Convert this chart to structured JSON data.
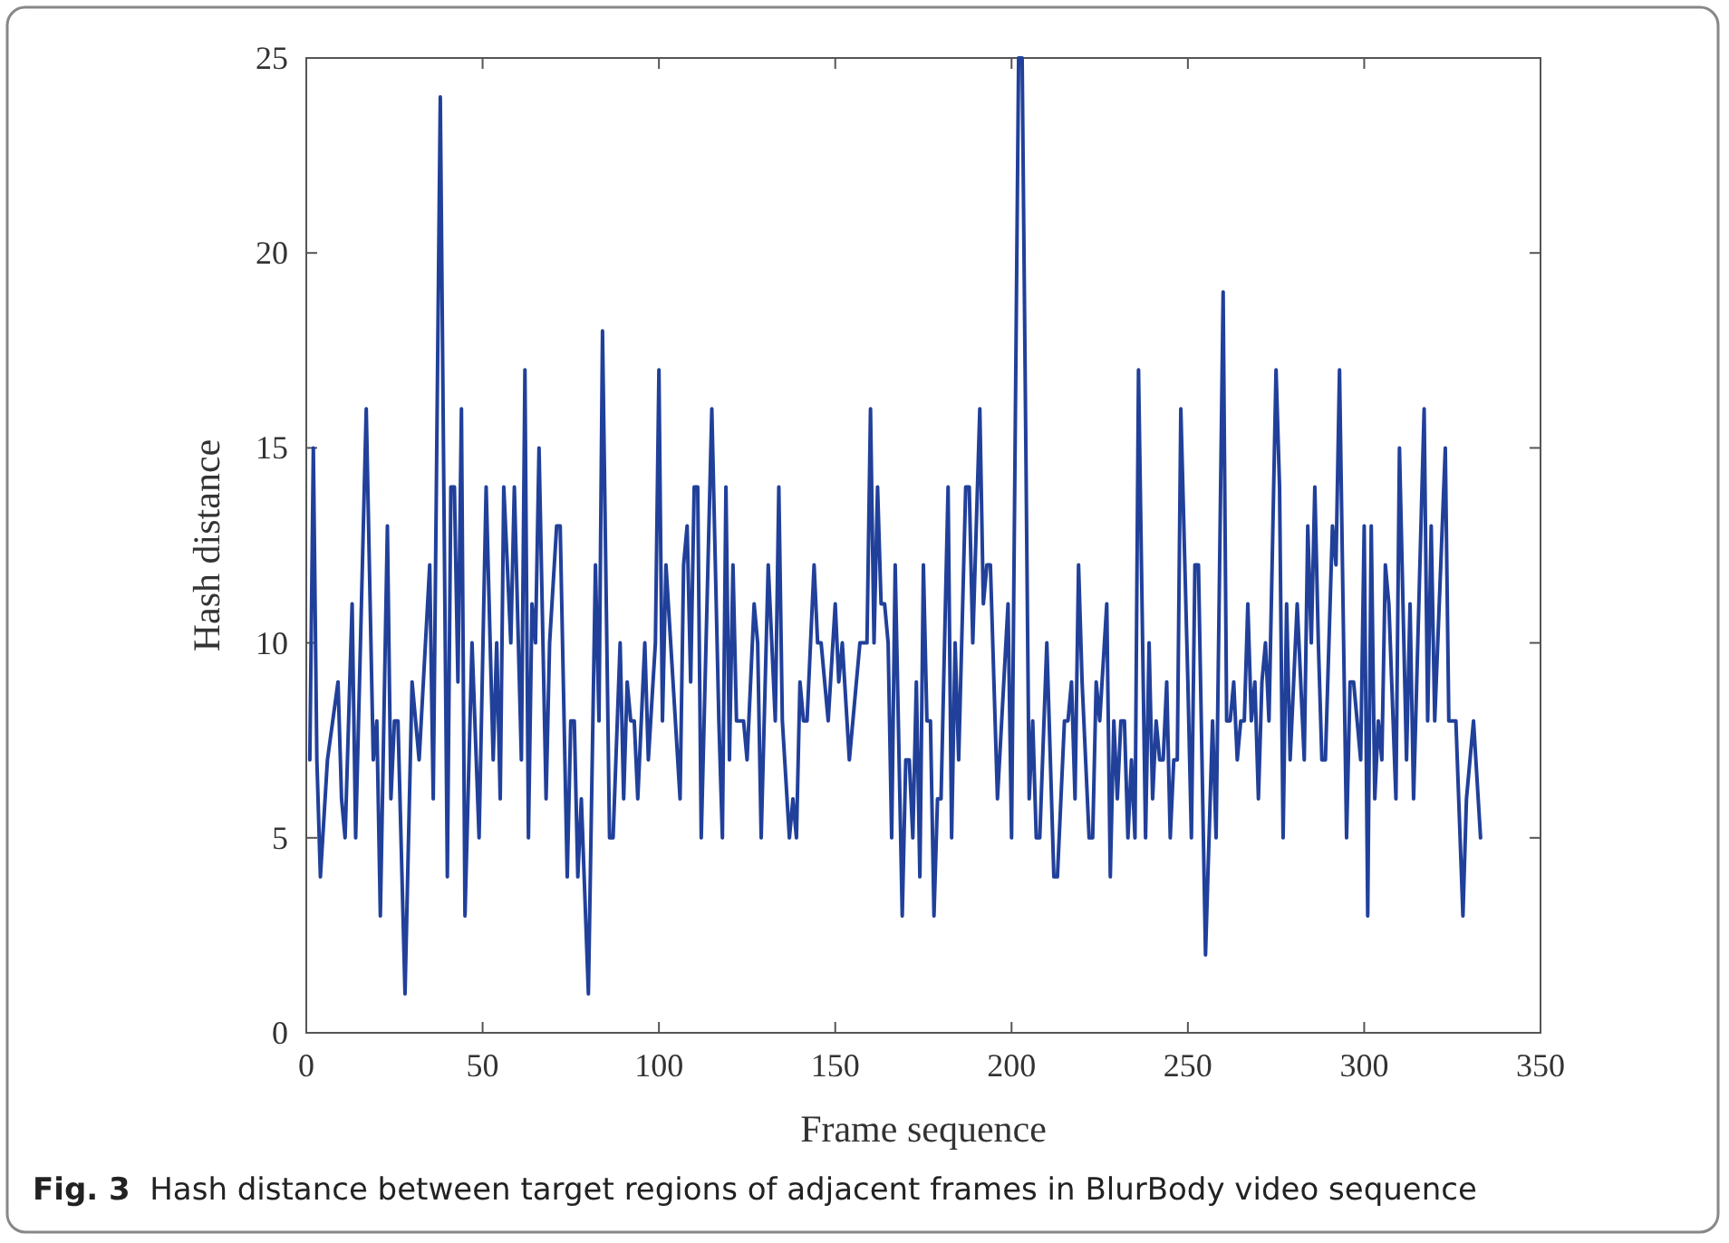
{
  "chart_data": {
    "type": "line",
    "xlabel": "Frame sequence",
    "ylabel": "Hash distance",
    "annotations": [
      "Fig. 3  Hash distance between target regions of adjacent frames in BlurBody video sequence"
    ],
    "xlim": [
      0,
      350
    ],
    "xticks": [
      0,
      50,
      100,
      150,
      200,
      250,
      300,
      350
    ],
    "ylim": [
      0,
      25
    ],
    "yticks": [
      0,
      5,
      10,
      15,
      20,
      25
    ],
    "grid": false,
    "marker": "none",
    "line_style": "solid",
    "series": [
      {
        "color": "#21409a",
        "x": [
          1,
          2,
          3,
          4,
          6,
          9,
          10,
          11,
          13,
          14,
          17,
          19,
          20,
          21,
          23,
          24,
          25,
          26,
          28,
          30,
          32,
          35,
          36,
          38,
          40,
          41,
          42,
          43,
          44,
          45,
          47,
          49,
          51,
          53,
          54,
          55,
          56,
          58,
          59,
          61,
          62,
          63,
          64,
          65,
          66,
          68,
          69,
          71,
          72,
          74,
          75,
          76,
          77,
          78,
          80,
          82,
          83,
          84,
          86,
          87,
          89,
          90,
          91,
          92,
          93,
          94,
          96,
          97,
          99,
          100,
          101,
          102,
          106,
          107,
          108,
          109,
          110,
          111,
          112,
          115,
          117,
          118,
          119,
          120,
          121,
          122,
          124,
          125,
          127,
          128,
          129,
          131,
          133,
          134,
          135,
          137,
          138,
          139,
          140,
          141,
          142,
          144,
          145,
          146,
          148,
          150,
          151,
          152,
          154,
          157,
          159,
          160,
          161,
          162,
          163,
          164,
          165,
          166,
          167,
          169,
          170,
          171,
          172,
          173,
          174,
          175,
          176,
          177,
          178,
          179,
          180,
          182,
          183,
          184,
          185,
          187,
          188,
          189,
          191,
          192,
          193,
          194,
          196,
          199,
          200,
          202,
          203,
          205,
          206,
          207,
          208,
          210,
          212,
          213,
          215,
          216,
          217,
          218,
          219,
          220,
          222,
          223,
          224,
          225,
          227,
          228,
          229,
          230,
          231,
          232,
          233,
          234,
          235,
          236,
          238,
          239,
          240,
          241,
          242,
          243,
          244,
          245,
          246,
          247,
          248,
          250,
          251,
          252,
          253,
          255,
          257,
          258,
          260,
          261,
          262,
          263,
          264,
          265,
          266,
          267,
          268,
          269,
          270,
          271,
          272,
          273,
          275,
          276,
          277,
          278,
          279,
          281,
          283,
          284,
          285,
          286,
          287,
          288,
          289,
          291,
          292,
          293,
          295,
          296,
          297,
          299,
          300,
          301,
          302,
          303,
          304,
          305,
          306,
          307,
          309,
          310,
          312,
          313,
          314,
          317,
          318,
          319,
          320,
          323,
          324,
          326,
          328,
          329,
          331,
          333
        ],
        "values": [
          7,
          15,
          7,
          4,
          7,
          9,
          6,
          5,
          11,
          5,
          16,
          7,
          8,
          3,
          13,
          6,
          8,
          8,
          1,
          9,
          7,
          12,
          6,
          24,
          4,
          14,
          14,
          9,
          16,
          3,
          10,
          5,
          14,
          7,
          10,
          6,
          14,
          10,
          14,
          7,
          17,
          5,
          11,
          10,
          15,
          6,
          10,
          13,
          13,
          4,
          8,
          8,
          4,
          6,
          1,
          12,
          8,
          18,
          5,
          5,
          10,
          6,
          9,
          8,
          8,
          6,
          10,
          7,
          10,
          17,
          8,
          12,
          6,
          12,
          13,
          9,
          14,
          14,
          5,
          16,
          8,
          5,
          14,
          7,
          12,
          8,
          8,
          7,
          11,
          10,
          5,
          12,
          8,
          14,
          8,
          5,
          6,
          5,
          9,
          8,
          8,
          12,
          10,
          10,
          8,
          11,
          9,
          10,
          7,
          10,
          10,
          16,
          10,
          14,
          11,
          11,
          10,
          5,
          12,
          3,
          7,
          7,
          5,
          9,
          4,
          12,
          8,
          8,
          3,
          6,
          6,
          14,
          5,
          10,
          7,
          14,
          14,
          10,
          16,
          11,
          12,
          12,
          6,
          11,
          5,
          25,
          25,
          6,
          8,
          5,
          5,
          10,
          4,
          4,
          8,
          8,
          9,
          6,
          12,
          9,
          5,
          5,
          9,
          8,
          11,
          4,
          8,
          6,
          8,
          8,
          5,
          7,
          5,
          17,
          5,
          10,
          6,
          8,
          7,
          7,
          9,
          5,
          7,
          7,
          16,
          9,
          5,
          12,
          12,
          2,
          8,
          5,
          19,
          8,
          8,
          9,
          7,
          8,
          8,
          11,
          8,
          9,
          6,
          9,
          10,
          8,
          17,
          14,
          5,
          11,
          7,
          11,
          7,
          13,
          10,
          14,
          10,
          7,
          7,
          13,
          12,
          17,
          5,
          9,
          9,
          7,
          13,
          3,
          13,
          6,
          8,
          7,
          12,
          11,
          6,
          15,
          7,
          11,
          6,
          16,
          8,
          13,
          8,
          15,
          8,
          8,
          3,
          6,
          8,
          5
        ]
      }
    ]
  }
}
